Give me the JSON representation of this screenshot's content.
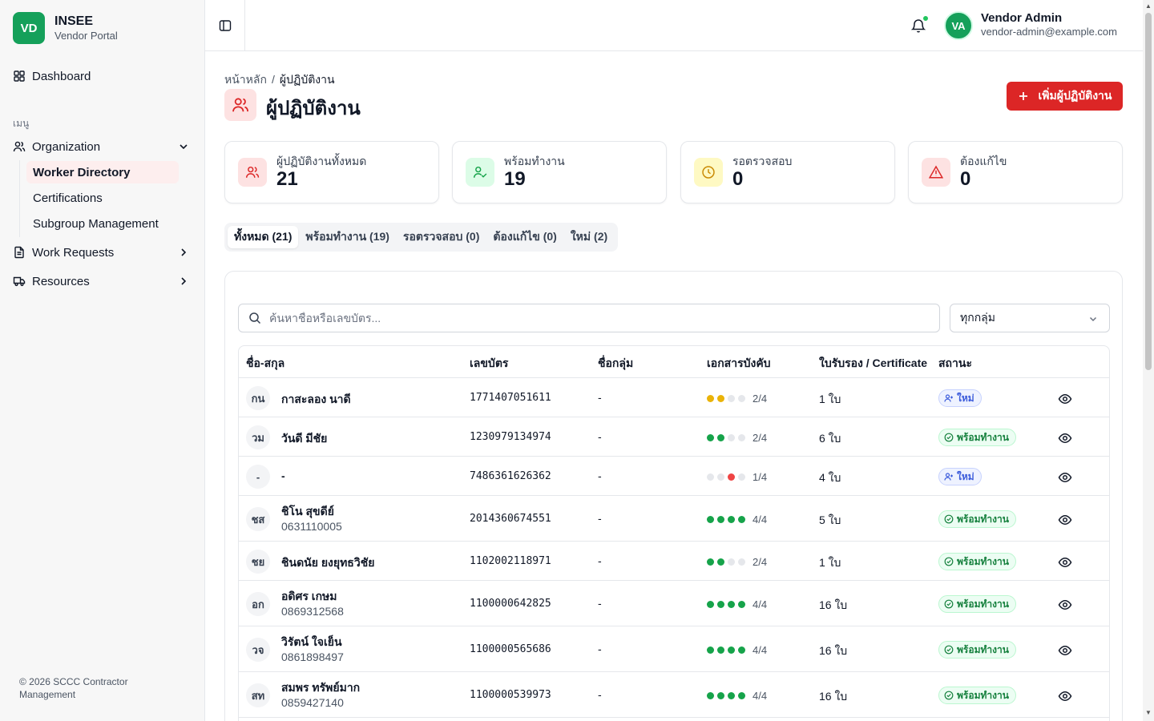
{
  "brand": {
    "logo": "VD",
    "name": "INSEE",
    "subtitle": "Vendor Portal"
  },
  "sidebar": {
    "dashboard": "Dashboard",
    "section_label": "เมนู",
    "organization": "Organization",
    "sub_items": [
      "Worker Directory",
      "Certifications",
      "Subgroup Management"
    ],
    "work_requests": "Work Requests",
    "resources": "Resources",
    "footer": "© 2026 SCCC Contractor Management"
  },
  "header": {
    "avatar": "VA",
    "user_name": "Vendor Admin",
    "user_email": "vendor-admin@example.com"
  },
  "breadcrumb": {
    "home": "หน้าหลัก",
    "separator": "/",
    "current": "ผู้ปฏิบัติงาน"
  },
  "page": {
    "title": "ผู้ปฏิบัติงาน",
    "add_button": "เพิ่มผู้ปฏิบัติงาน"
  },
  "stats": [
    {
      "label": "ผู้ปฏิบัติงานทั้งหมด",
      "value": "21",
      "icon": "users-icon",
      "color": "#dc2626",
      "bg": "#fde2e2"
    },
    {
      "label": "พร้อมทำงาน",
      "value": "19",
      "icon": "user-check-icon",
      "color": "#16a34a",
      "bg": "#dcfce7"
    },
    {
      "label": "รอตรวจสอบ",
      "value": "0",
      "icon": "clock-icon",
      "color": "#ca8a04",
      "bg": "#fef9c3"
    },
    {
      "label": "ต้องแก้ไข",
      "value": "0",
      "icon": "alert-triangle-icon",
      "color": "#dc2626",
      "bg": "#fde2e2"
    }
  ],
  "tabs": [
    "ทั้งหมด (21)",
    "พร้อมทำงาน (19)",
    "รอตรวจสอบ (0)",
    "ต้องแก้ไข (0)",
    "ใหม่ (2)"
  ],
  "search": {
    "placeholder": "ค้นหาชื่อหรือเลขบัตร..."
  },
  "filter": {
    "selected": "ทุกกลุ่ม"
  },
  "table": {
    "columns": [
      "ชื่อ-สกุล",
      "เลขบัตร",
      "ชื่อกลุ่ม",
      "เอกสารบังคับ",
      "ใบรับรอง / Certificate",
      "สถานะ"
    ],
    "rows": [
      {
        "initials": "กน",
        "name": "กาสะลอง นาดี",
        "phone": "",
        "id": "1771407051611",
        "group": "-",
        "docs": [
          "#eab308",
          "#eab308",
          "#e5e7eb",
          "#e5e7eb"
        ],
        "docs_label": "2/4",
        "certs": "1 ใบ",
        "status": "ใหม่",
        "status_type": "new"
      },
      {
        "initials": "วม",
        "name": "วันดี มีชัย",
        "phone": "",
        "id": "1230979134974",
        "group": "-",
        "docs": [
          "#16a34a",
          "#16a34a",
          "#e5e7eb",
          "#e5e7eb"
        ],
        "docs_label": "2/4",
        "certs": "6 ใบ",
        "status": "พร้อมทำงาน",
        "status_type": "ready"
      },
      {
        "initials": "-",
        "name": "-",
        "phone": "",
        "id": "7486361626362",
        "group": "-",
        "docs": [
          "#e5e7eb",
          "#e5e7eb",
          "#ef4444",
          "#e5e7eb"
        ],
        "docs_label": "1/4",
        "certs": "4 ใบ",
        "status": "ใหม่",
        "status_type": "new"
      },
      {
        "initials": "ชส",
        "name": "ชิโน สุขดีย์",
        "phone": "0631110005",
        "id": "2014360674551",
        "group": "-",
        "docs": [
          "#16a34a",
          "#16a34a",
          "#16a34a",
          "#16a34a"
        ],
        "docs_label": "4/4",
        "certs": "5 ใบ",
        "status": "พร้อมทำงาน",
        "status_type": "ready"
      },
      {
        "initials": "ชย",
        "name": "ชินดนัย ยงยุทธวิชัย",
        "phone": "",
        "id": "1102002118971",
        "group": "-",
        "docs": [
          "#16a34a",
          "#16a34a",
          "#e5e7eb",
          "#e5e7eb"
        ],
        "docs_label": "2/4",
        "certs": "1 ใบ",
        "status": "พร้อมทำงาน",
        "status_type": "ready"
      },
      {
        "initials": "อก",
        "name": "อดิศร เกษม",
        "phone": "0869312568",
        "id": "1100000642825",
        "group": "-",
        "docs": [
          "#16a34a",
          "#16a34a",
          "#16a34a",
          "#16a34a"
        ],
        "docs_label": "4/4",
        "certs": "16 ใบ",
        "status": "พร้อมทำงาน",
        "status_type": "ready"
      },
      {
        "initials": "วจ",
        "name": "วิรัตน์ ใจเย็น",
        "phone": "0861898497",
        "id": "1100000565686",
        "group": "-",
        "docs": [
          "#16a34a",
          "#16a34a",
          "#16a34a",
          "#16a34a"
        ],
        "docs_label": "4/4",
        "certs": "16 ใบ",
        "status": "พร้อมทำงาน",
        "status_type": "ready"
      },
      {
        "initials": "สท",
        "name": "สมพร ทรัพย์มาก",
        "phone": "0859427140",
        "id": "1100000539973",
        "group": "-",
        "docs": [
          "#16a34a",
          "#16a34a",
          "#16a34a",
          "#16a34a"
        ],
        "docs_label": "4/4",
        "certs": "16 ใบ",
        "status": "พร้อมทำงาน",
        "status_type": "ready"
      }
    ]
  }
}
